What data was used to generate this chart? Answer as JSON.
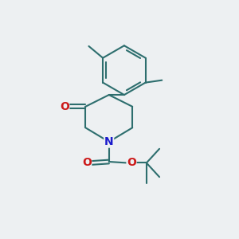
{
  "background_color": "#edf0f2",
  "bond_color": "#2d6e6e",
  "bond_width": 1.5,
  "atom_colors": {
    "N": "#1a1acc",
    "O": "#cc1a1a",
    "C": "#2d6e6e"
  },
  "font_size_atoms": 10
}
